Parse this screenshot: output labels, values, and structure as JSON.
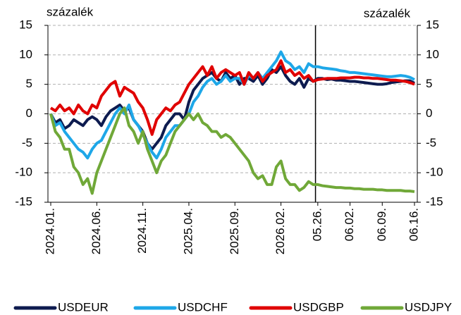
{
  "chart_data": {
    "type": "line",
    "ylabel": "százalék",
    "y2label": "százalék",
    "categories": [
      "2024.01.",
      null,
      null,
      null,
      null,
      null,
      null,
      null,
      null,
      null,
      "2024.06.",
      null,
      null,
      null,
      null,
      null,
      null,
      null,
      null,
      null,
      "2024.11.",
      null,
      null,
      null,
      null,
      null,
      null,
      null,
      null,
      null,
      "2025.04.",
      null,
      null,
      null,
      null,
      null,
      null,
      null,
      null,
      null,
      "2025.09.",
      null,
      null,
      null,
      null,
      null,
      null,
      null,
      null,
      null,
      "2026.02.",
      null,
      null,
      null,
      null,
      null,
      null,
      null,
      "05.26.",
      null,
      null,
      null,
      null,
      null,
      null,
      "06.02.",
      null,
      null,
      null,
      null,
      null,
      null,
      "06.09.",
      null,
      null,
      null,
      null,
      null,
      null,
      "06.16."
    ],
    "series": [
      {
        "name": "USDEUR",
        "color": "#0d1b4f",
        "values": [
          0,
          -1.5,
          -1,
          -2.5,
          -2,
          -1,
          -1.5,
          -2,
          -1,
          -0.5,
          -1,
          -2,
          -0.5,
          0.5,
          1,
          1.5,
          0.5,
          1,
          -1,
          -2,
          -3,
          -5,
          -6,
          -5,
          -4,
          -2,
          -1,
          0,
          0,
          -1,
          2,
          4,
          5,
          6,
          6.5,
          7,
          6,
          5.5,
          7,
          6,
          6.5,
          5,
          6,
          6,
          5.5,
          6.5,
          5,
          6,
          7.5,
          7,
          8,
          6.5,
          5.5,
          5,
          6,
          4.5,
          6,
          5.5,
          6,
          6,
          5.8,
          5.9,
          5.7,
          5.7,
          5.6,
          5.5,
          5.5,
          5.4,
          5.3,
          5.2,
          5.1,
          5.0,
          5.0,
          5.1,
          5.3,
          5.4,
          5.5,
          5.6,
          5.6,
          5.2
        ]
      },
      {
        "name": "USDCHF",
        "color": "#1ea7e8",
        "values": [
          0,
          -2,
          -1.5,
          -3,
          -4,
          -5,
          -6,
          -6.5,
          -7.5,
          -6,
          -5,
          -4.5,
          -3,
          -1.5,
          0,
          1,
          0,
          1.5,
          -1,
          -2,
          -3.5,
          -5,
          -6.5,
          -7.5,
          -6,
          -4,
          -3,
          -2,
          -2,
          -1,
          0,
          2,
          3,
          4.5,
          5.5,
          6,
          5,
          5.5,
          6.5,
          5.5,
          6,
          6,
          5,
          6.5,
          6,
          7,
          6,
          7,
          8,
          9,
          10.5,
          9,
          8.5,
          7.5,
          8,
          7,
          8.5,
          8,
          8,
          7.8,
          7.7,
          7.6,
          7.5,
          7.3,
          7.2,
          7.0,
          7.0,
          6.9,
          6.8,
          6.7,
          6.6,
          6.5,
          6.4,
          6.3,
          6.3,
          6.4,
          6.5,
          6.4,
          6.2,
          5.8
        ]
      },
      {
        "name": "USDGBP",
        "color": "#e00000",
        "values": [
          1,
          0.5,
          1.5,
          0.5,
          1,
          0,
          1.5,
          0.5,
          0,
          1.5,
          1,
          3,
          4,
          5,
          5.5,
          3,
          4.5,
          4,
          3.5,
          2,
          1,
          -1,
          -3.5,
          -1,
          0,
          1,
          0.5,
          1.5,
          2,
          3.5,
          5,
          6,
          7,
          8,
          6.5,
          8,
          6,
          7,
          7.5,
          7,
          6.5,
          7,
          5,
          7,
          6,
          7,
          5.5,
          6.5,
          7,
          7.5,
          9,
          7,
          7.5,
          6.5,
          7,
          6,
          6.5,
          5.5,
          5.8,
          5.9,
          6,
          6,
          6,
          6.1,
          6.1,
          6.1,
          6.2,
          6.2,
          6.1,
          6.1,
          6,
          6,
          5.9,
          5.8,
          5.7,
          5.7,
          5.6,
          5.5,
          5.3,
          5
        ]
      },
      {
        "name": "USDJPY",
        "color": "#70a838",
        "values": [
          0,
          -3,
          -4,
          -6,
          -6,
          -9,
          -10,
          -12,
          -11,
          -13.5,
          -10,
          -8,
          -6,
          -4,
          -2,
          0,
          1,
          -2,
          -3,
          -5,
          -3,
          -6,
          -8,
          -10,
          -8,
          -7,
          -5,
          -3,
          -2,
          -1,
          0,
          -1,
          0,
          -1.5,
          -2,
          -3,
          -3,
          -4,
          -3.5,
          -4,
          -5,
          -6,
          -7,
          -8,
          -10,
          -11,
          -10.5,
          -12,
          -12,
          -9,
          -8,
          -11,
          -12,
          -12,
          -13,
          -12.5,
          -11.5,
          -12,
          -12,
          -12.2,
          -12.3,
          -12.4,
          -12.5,
          -12.5,
          -12.6,
          -12.6,
          -12.7,
          -12.7,
          -12.8,
          -12.8,
          -12.8,
          -12.9,
          -12.9,
          -13,
          -13,
          -13,
          -13,
          -13.1,
          -13.1,
          -13.2
        ]
      }
    ],
    "ylim": [
      -15,
      15
    ],
    "yticks": [
      -15,
      -10,
      -5,
      0,
      5,
      10,
      15
    ],
    "y2lim": [
      -15,
      15
    ],
    "y2ticks": [
      -15,
      -10,
      -5,
      0,
      5,
      10,
      15
    ],
    "grid": true,
    "legend": "bottom"
  }
}
